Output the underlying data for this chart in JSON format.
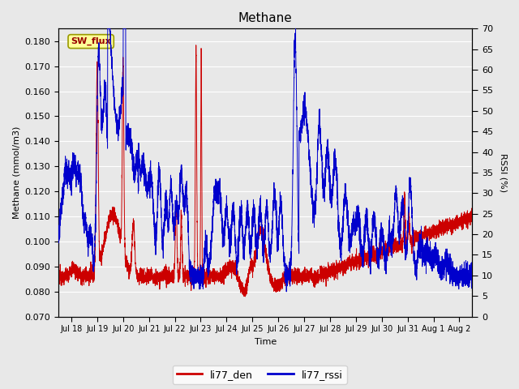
{
  "title": "Methane",
  "xlabel": "Time",
  "ylabel_left": "Methane (mmol/m3)",
  "ylabel_right": "RSSI (%)",
  "ylim_left": [
    0.07,
    0.185
  ],
  "ylim_right": [
    0,
    70
  ],
  "yticks_left": [
    0.07,
    0.08,
    0.09,
    0.1,
    0.11,
    0.12,
    0.13,
    0.14,
    0.15,
    0.16,
    0.17,
    0.18
  ],
  "yticks_right": [
    0,
    5,
    10,
    15,
    20,
    25,
    30,
    35,
    40,
    45,
    50,
    55,
    60,
    65,
    70
  ],
  "color_red": "#cc0000",
  "color_blue": "#0000cc",
  "plot_bg_color": "#e8e8e8",
  "fig_bg_color": "#e8e8e8",
  "grid_color": "#ffffff",
  "legend_box_color": "#ffff99",
  "legend_box_edgecolor": "#999900",
  "sw_flux_label": "SW_flux",
  "legend_label_red": "li77_den",
  "legend_label_blue": "li77_rssi",
  "num_points": 5000,
  "x_start": 17.5,
  "x_end": 33.5,
  "xlim": [
    17.5,
    33.5
  ],
  "xtick_positions": [
    18,
    19,
    20,
    21,
    22,
    23,
    24,
    25,
    26,
    27,
    28,
    29,
    30,
    31,
    32,
    33
  ],
  "xtick_labels": [
    "Jul 18",
    "Jul 19",
    "Jul 20",
    "Jul 21",
    "Jul 22",
    "Jul 23",
    "Jul 24",
    "Jul 25",
    "Jul 26",
    "Jul 27",
    "Jul 28",
    "Jul 29",
    "Jul 30",
    "Jul 31",
    "Aug 1",
    "Aug 2"
  ]
}
